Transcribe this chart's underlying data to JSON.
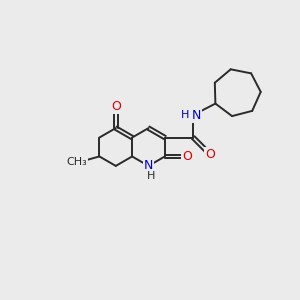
{
  "bg_color": "#ebebeb",
  "bond_color": "#2a2a2a",
  "bond_width": 1.4,
  "atom_colors": {
    "O": "#dd0000",
    "N": "#0000cc",
    "C": "#2a2a2a",
    "H": "#2a2a2a"
  }
}
